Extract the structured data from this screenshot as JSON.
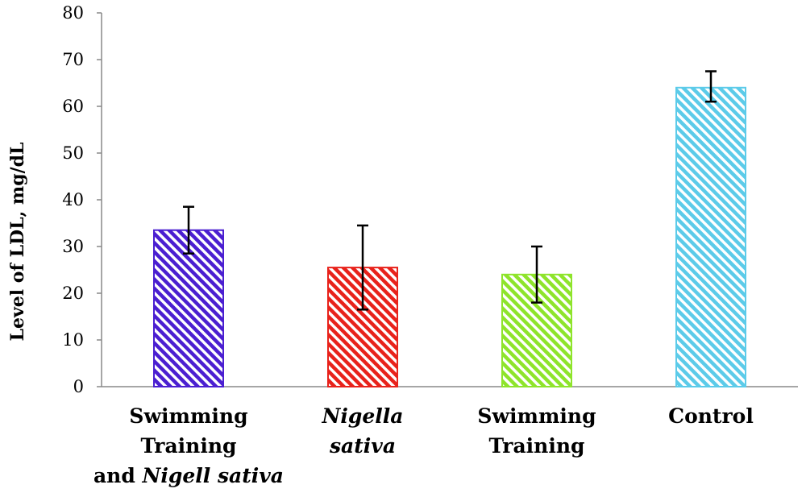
{
  "chart_data": {
    "type": "bar",
    "title": "",
    "xlabel": "",
    "ylabel": "Level of LDL, mg/dL",
    "ylim": [
      0,
      80
    ],
    "yticks": [
      0,
      10,
      20,
      30,
      40,
      50,
      60,
      70,
      80
    ],
    "grid": false,
    "legend": "none",
    "categories": [
      {
        "lines": [
          [
            {
              "t": "Swimming",
              "i": false
            }
          ],
          [
            {
              "t": "Training",
              "i": false
            }
          ],
          [
            {
              "t": "and ",
              "i": false
            },
            {
              "t": "Nigell sativa",
              "i": true
            }
          ]
        ]
      },
      {
        "lines": [
          [
            {
              "t": "Nigella",
              "i": true
            }
          ],
          [
            {
              "t": "sativa",
              "i": true
            }
          ]
        ]
      },
      {
        "lines": [
          [
            {
              "t": "Swimming",
              "i": false
            }
          ],
          [
            {
              "t": "Training",
              "i": false
            }
          ]
        ]
      },
      {
        "lines": [
          [
            {
              "t": "Control",
              "i": false
            }
          ]
        ]
      }
    ],
    "series": [
      {
        "values": [
          33.5,
          25.5,
          24,
          64
        ],
        "error_low": [
          28.5,
          16.5,
          18,
          61
        ],
        "error_high": [
          38.5,
          34.5,
          30,
          67.5
        ],
        "colors": [
          "#4b1fd1",
          "#e8221b",
          "#8ee42b",
          "#5ccbe9"
        ]
      }
    ]
  }
}
